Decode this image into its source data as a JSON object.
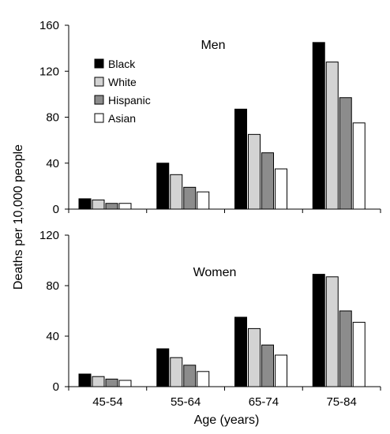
{
  "chart_data": {
    "type": "bar",
    "categories": [
      "45-54",
      "55-64",
      "65-74",
      "75-84"
    ],
    "xlabel": "Age (years)",
    "ylabel": "Deaths per 10,000 people",
    "legend": {
      "placement": "top-left of upper panel",
      "entries": [
        "Black",
        "White",
        "Hispanic",
        "Asian"
      ]
    },
    "series_colors": {
      "Black": "#000000",
      "White": "#d3d3d3",
      "Hispanic": "#8c8c8c",
      "Asian": "#ffffff"
    },
    "grid": false,
    "panels": [
      {
        "title": "Men",
        "ylim": [
          0,
          160
        ],
        "yticks": [
          0,
          40,
          80,
          120,
          160
        ],
        "series": [
          {
            "name": "Black",
            "values": [
              9,
              40,
              87,
              145
            ]
          },
          {
            "name": "White",
            "values": [
              8,
              30,
              65,
              128
            ]
          },
          {
            "name": "Hispanic",
            "values": [
              5,
              19,
              49,
              97
            ]
          },
          {
            "name": "Asian",
            "values": [
              5,
              15,
              35,
              75
            ]
          }
        ]
      },
      {
        "title": "Women",
        "ylim": [
          0,
          120
        ],
        "yticks": [
          0,
          40,
          80,
          120
        ],
        "series": [
          {
            "name": "Black",
            "values": [
              10,
              30,
              55,
              89
            ]
          },
          {
            "name": "White",
            "values": [
              8,
              23,
              46,
              87
            ]
          },
          {
            "name": "Hispanic",
            "values": [
              6,
              17,
              33,
              60
            ]
          },
          {
            "name": "Asian",
            "values": [
              5,
              12,
              25,
              51
            ]
          }
        ]
      }
    ]
  }
}
